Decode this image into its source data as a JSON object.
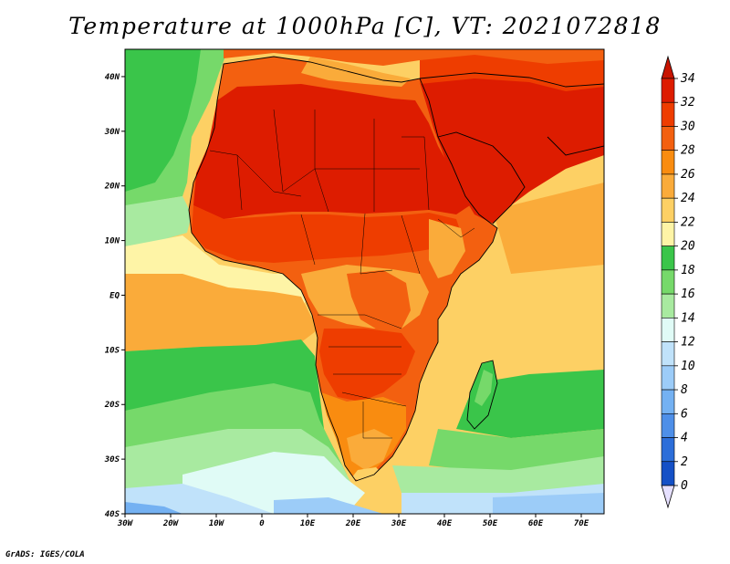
{
  "title": "Temperature at 1000hPa [C], VT: 2021072818",
  "credit": "GrADS: IGES/COLA",
  "map": {
    "lon_range": [
      -30,
      75
    ],
    "lat_range": [
      -40,
      45
    ],
    "x_ticks": [
      "30W",
      "20W",
      "10W",
      "0",
      "10E",
      "20E",
      "30E",
      "40E",
      "50E",
      "60E",
      "70E"
    ],
    "y_ticks": [
      "40N",
      "30N",
      "20N",
      "10N",
      "EQ",
      "10S",
      "20S",
      "30S",
      "40S"
    ]
  },
  "colorbar": {
    "labels": [
      "34",
      "32",
      "30",
      "28",
      "26",
      "24",
      "22",
      "20",
      "18",
      "16",
      "14",
      "12",
      "10",
      "8",
      "6",
      "4",
      "2",
      "0"
    ],
    "colors": [
      "#dd1c00",
      "#ee3d00",
      "#f36010",
      "#f98c10",
      "#faab3a",
      "#fdd064",
      "#fef4a6",
      "#3ac54a",
      "#76d96a",
      "#a8eaa0",
      "#e0fbf6",
      "#c0e2fa",
      "#9cccf8",
      "#74b1f2",
      "#4e8fe8",
      "#2c6ed9",
      "#1550c6",
      "#0a2e96",
      "#0a1268"
    ],
    "top_color": "#c81400",
    "bottom_color": "#e6e0ff"
  }
}
